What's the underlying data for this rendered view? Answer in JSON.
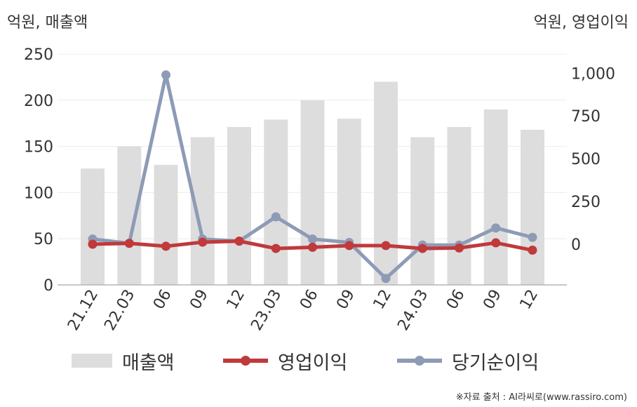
{
  "labels": {
    "left_unit": "억원, 매출액",
    "right_unit": "억원, 영업이익",
    "source": "※자료 출처 : AI라씨로(www.rassiro.com)"
  },
  "chart_data": {
    "type": "bar",
    "categories": [
      "21.12",
      "22.03",
      "06",
      "09",
      "12",
      "23.03",
      "06",
      "09",
      "12",
      "24.03",
      "06",
      "09",
      "12"
    ],
    "y_left": {
      "label": "억원, 매출액",
      "range": [
        0,
        250
      ],
      "ticks": [
        0,
        50,
        100,
        150,
        200,
        250
      ]
    },
    "y_right": {
      "label": "억원, 영업이익",
      "range": [
        -238,
        1112
      ],
      "ticks": [
        0,
        250,
        500,
        750,
        1000
      ],
      "tick_labels": [
        "0",
        "250",
        "500",
        "750",
        "1,000"
      ]
    },
    "grid": true,
    "legend_position": "bottom",
    "series": [
      {
        "name": "매출액",
        "type": "bar",
        "axis": "left",
        "color": "#dddddd",
        "values": [
          126,
          150,
          130,
          160,
          171,
          179,
          200,
          180,
          220,
          160,
          171,
          190,
          168
        ]
      },
      {
        "name": "영업이익",
        "type": "line",
        "axis": "right",
        "color": "#c0393b",
        "values": [
          0,
          5,
          -12,
          12,
          18,
          -25,
          -18,
          -8,
          -8,
          -25,
          -22,
          8,
          -35
        ]
      },
      {
        "name": "당기순이익",
        "type": "line",
        "axis": "right",
        "color": "#8e9bb6",
        "values": [
          30,
          5,
          990,
          30,
          18,
          160,
          30,
          10,
          -200,
          -5,
          -5,
          95,
          40
        ]
      }
    ]
  }
}
